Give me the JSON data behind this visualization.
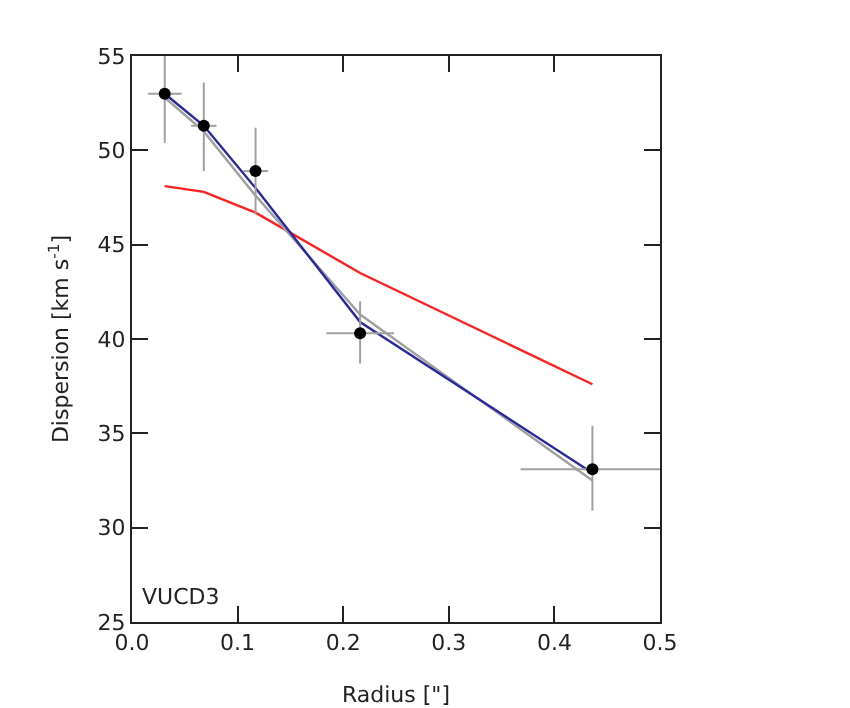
{
  "chart_data": {
    "type": "scatter",
    "xlabel": "Radius [\"]",
    "ylabel": "Dispersion [km s$^{-1}$]",
    "xlim": [
      0,
      0.5
    ],
    "xticks": [
      {
        "value": 0,
        "label": "0.0"
      },
      0.1,
      0.2,
      0.3,
      0.4,
      0.5
    ],
    "ylim": [
      25,
      55
    ],
    "yticks": [
      25,
      30,
      35,
      40,
      45,
      50,
      55
    ],
    "annotations": [
      "VUCD3"
    ],
    "series": [
      {
        "type": "line",
        "color": "#ff2020",
        "marker": "none",
        "x": [
          0.031,
          0.068,
          0.117,
          0.216,
          0.436
        ],
        "values": [
          48.1,
          47.8,
          46.7,
          43.5,
          37.6
        ]
      },
      {
        "type": "line",
        "color": "#a0a0a0",
        "marker": "none",
        "x": [
          0.031,
          0.068,
          0.117,
          0.216,
          0.436
        ],
        "values": [
          52.8,
          51.0,
          47.6,
          41.3,
          32.5
        ]
      },
      {
        "type": "line",
        "color": "#2828a0",
        "marker": "none",
        "x": [
          0.031,
          0.068,
          0.117,
          0.216,
          0.436
        ],
        "values": [
          53.0,
          51.3,
          48.0,
          40.9,
          32.9
        ]
      },
      {
        "color": "#000000",
        "marker": "circle",
        "x": [
          0.031,
          0.068,
          0.117,
          0.216,
          0.436
        ],
        "values": [
          53.0,
          51.3,
          48.9,
          40.3,
          33.1
        ],
        "errors": [
          [
            50.4,
            55
          ],
          [
            48.9,
            53.6
          ],
          [
            46.6,
            51.2
          ],
          [
            38.7,
            42.0
          ],
          [
            30.9,
            35.4
          ]
        ],
        "xerrors": [
          0.016,
          0.012,
          0.012,
          0.032,
          0.068
        ]
      }
    ]
  }
}
